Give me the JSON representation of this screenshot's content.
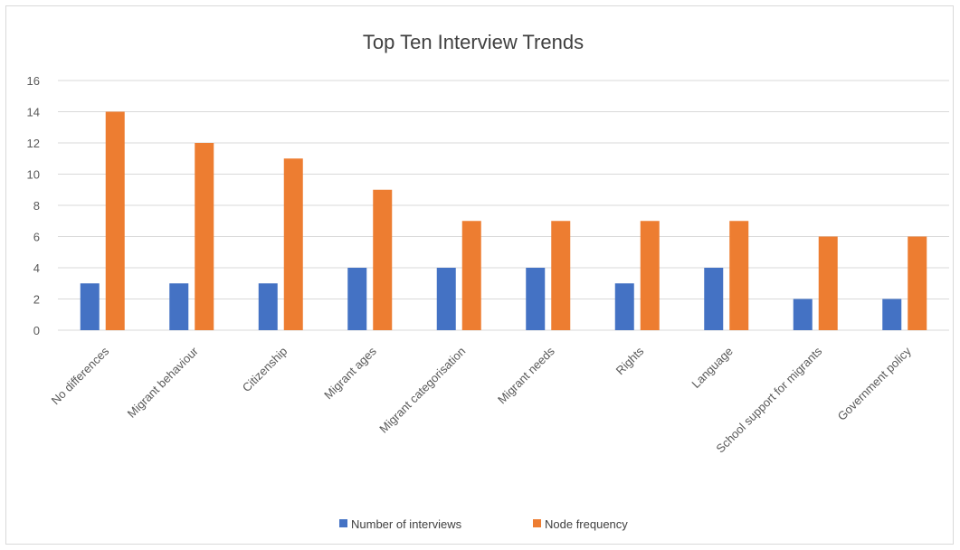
{
  "chart_data": {
    "type": "bar",
    "title": "Top Ten Interview Trends",
    "categories": [
      "No differences",
      "Migrant behaviour",
      "Citizenship",
      "Migrant ages",
      "Migrant categorisation",
      "Migrant needs",
      "Rights",
      "Language",
      "School support for migrants",
      "Government policy"
    ],
    "series": [
      {
        "name": "Number of interviews",
        "color": "#4472c4",
        "values": [
          3,
          3,
          3,
          4,
          4,
          4,
          3,
          4,
          2,
          2
        ]
      },
      {
        "name": "Node frequency",
        "color": "#ed7d31",
        "values": [
          14,
          12,
          11,
          9,
          7,
          7,
          7,
          7,
          6,
          6
        ]
      }
    ],
    "ylim": [
      0,
      16
    ],
    "yticks": [
      "0",
      "2",
      "4",
      "6",
      "8",
      "10",
      "12",
      "14",
      "16"
    ],
    "grid": true,
    "legend": "bottom-center",
    "gridline_color": "#d9d9d9",
    "axis_label_color": "#595959"
  }
}
